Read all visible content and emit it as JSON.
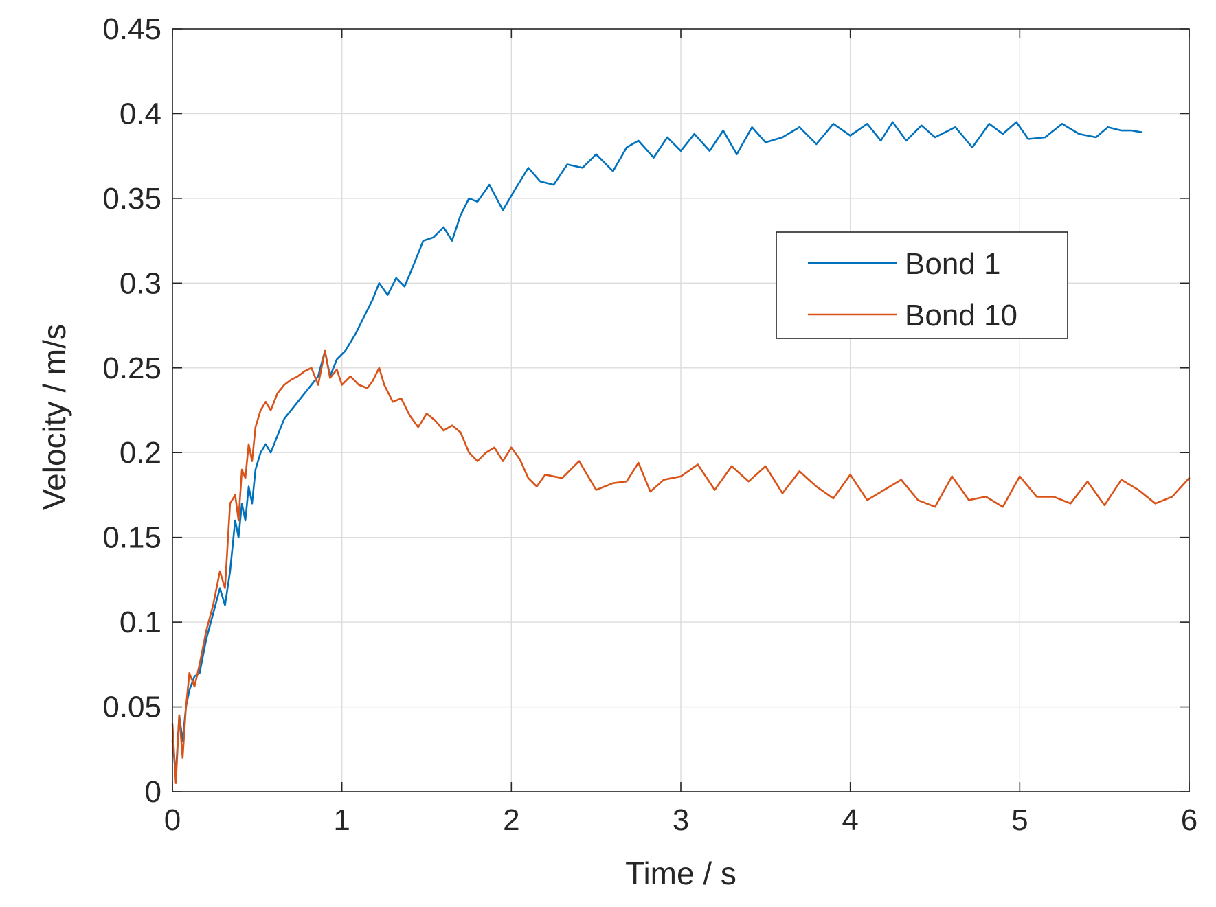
{
  "chart_data": {
    "type": "line",
    "title": "",
    "xlabel": "Time / s",
    "ylabel": "Velocity / m/s",
    "xlim": [
      0,
      6
    ],
    "ylim": [
      0,
      0.45
    ],
    "xticks": [
      0,
      1,
      2,
      3,
      4,
      5,
      6
    ],
    "xtick_labels": [
      "0",
      "1",
      "2",
      "3",
      "4",
      "5",
      "6"
    ],
    "yticks": [
      0,
      0.05,
      0.1,
      0.15,
      0.2,
      0.25,
      0.3,
      0.35,
      0.4,
      0.45
    ],
    "ytick_labels": [
      "0",
      "0.05",
      "0.1",
      "0.15",
      "0.2",
      "0.25",
      "0.3",
      "0.35",
      "0.4",
      "0.45"
    ],
    "grid": true,
    "legend_position": "upper-right",
    "series": [
      {
        "name": "Bond 1",
        "color": "#0072BD",
        "x": [
          0,
          0.02,
          0.04,
          0.06,
          0.08,
          0.1,
          0.13,
          0.16,
          0.2,
          0.24,
          0.28,
          0.31,
          0.34,
          0.37,
          0.39,
          0.41,
          0.43,
          0.45,
          0.47,
          0.49,
          0.52,
          0.55,
          0.58,
          0.62,
          0.66,
          0.7,
          0.74,
          0.78,
          0.82,
          0.86,
          0.9,
          0.93,
          0.97,
          1.02,
          1.08,
          1.13,
          1.18,
          1.22,
          1.27,
          1.32,
          1.37,
          1.42,
          1.48,
          1.54,
          1.6,
          1.65,
          1.7,
          1.75,
          1.8,
          1.87,
          1.95,
          2.02,
          2.1,
          2.17,
          2.25,
          2.33,
          2.42,
          2.5,
          2.6,
          2.68,
          2.75,
          2.84,
          2.92,
          3.0,
          3.08,
          3.17,
          3.25,
          3.33,
          3.42,
          3.5,
          3.6,
          3.7,
          3.8,
          3.9,
          4.0,
          4.1,
          4.18,
          4.25,
          4.33,
          4.42,
          4.5,
          4.62,
          4.72,
          4.82,
          4.9,
          4.98,
          5.05,
          5.15,
          5.25,
          5.35,
          5.45,
          5.52,
          5.6,
          5.66,
          5.72
        ],
        "values": [
          0.03,
          0.01,
          0.045,
          0.03,
          0.05,
          0.06,
          0.068,
          0.07,
          0.09,
          0.105,
          0.12,
          0.11,
          0.13,
          0.16,
          0.15,
          0.17,
          0.16,
          0.18,
          0.17,
          0.19,
          0.2,
          0.205,
          0.2,
          0.21,
          0.22,
          0.225,
          0.23,
          0.235,
          0.24,
          0.245,
          0.26,
          0.245,
          0.255,
          0.26,
          0.27,
          0.28,
          0.29,
          0.3,
          0.293,
          0.303,
          0.298,
          0.31,
          0.325,
          0.327,
          0.333,
          0.325,
          0.34,
          0.35,
          0.348,
          0.358,
          0.343,
          0.355,
          0.368,
          0.36,
          0.358,
          0.37,
          0.368,
          0.376,
          0.366,
          0.38,
          0.384,
          0.374,
          0.386,
          0.378,
          0.388,
          0.378,
          0.39,
          0.376,
          0.392,
          0.383,
          0.386,
          0.392,
          0.382,
          0.394,
          0.387,
          0.394,
          0.384,
          0.395,
          0.384,
          0.393,
          0.386,
          0.392,
          0.38,
          0.394,
          0.388,
          0.395,
          0.385,
          0.386,
          0.394,
          0.388,
          0.386,
          0.392,
          0.39,
          0.39,
          0.389
        ]
      },
      {
        "name": "Bond 10",
        "color": "#D95319",
        "x": [
          0,
          0.02,
          0.04,
          0.06,
          0.08,
          0.1,
          0.13,
          0.16,
          0.2,
          0.24,
          0.28,
          0.31,
          0.34,
          0.37,
          0.39,
          0.41,
          0.43,
          0.45,
          0.47,
          0.49,
          0.52,
          0.55,
          0.58,
          0.62,
          0.66,
          0.7,
          0.74,
          0.78,
          0.82,
          0.86,
          0.9,
          0.93,
          0.97,
          1.0,
          1.05,
          1.1,
          1.15,
          1.18,
          1.22,
          1.25,
          1.3,
          1.35,
          1.4,
          1.45,
          1.5,
          1.55,
          1.6,
          1.65,
          1.7,
          1.75,
          1.8,
          1.85,
          1.9,
          1.95,
          2.0,
          2.05,
          2.1,
          2.15,
          2.2,
          2.3,
          2.4,
          2.5,
          2.6,
          2.68,
          2.75,
          2.82,
          2.9,
          3.0,
          3.1,
          3.2,
          3.3,
          3.4,
          3.5,
          3.6,
          3.7,
          3.8,
          3.9,
          4.0,
          4.1,
          4.2,
          4.3,
          4.4,
          4.5,
          4.6,
          4.7,
          4.8,
          4.9,
          5.0,
          5.1,
          5.2,
          5.3,
          5.4,
          5.5,
          5.6,
          5.7,
          5.8,
          5.9,
          6.0
        ],
        "values": [
          0.04,
          0.005,
          0.045,
          0.02,
          0.05,
          0.07,
          0.062,
          0.075,
          0.095,
          0.11,
          0.13,
          0.12,
          0.17,
          0.175,
          0.16,
          0.19,
          0.185,
          0.205,
          0.195,
          0.215,
          0.225,
          0.23,
          0.225,
          0.235,
          0.24,
          0.243,
          0.245,
          0.248,
          0.25,
          0.24,
          0.26,
          0.244,
          0.249,
          0.24,
          0.245,
          0.24,
          0.238,
          0.242,
          0.25,
          0.24,
          0.23,
          0.232,
          0.222,
          0.215,
          0.223,
          0.219,
          0.213,
          0.216,
          0.212,
          0.2,
          0.195,
          0.2,
          0.203,
          0.195,
          0.203,
          0.196,
          0.185,
          0.18,
          0.187,
          0.185,
          0.195,
          0.178,
          0.182,
          0.183,
          0.194,
          0.177,
          0.184,
          0.186,
          0.193,
          0.178,
          0.192,
          0.183,
          0.192,
          0.176,
          0.189,
          0.18,
          0.173,
          0.187,
          0.172,
          0.178,
          0.184,
          0.172,
          0.168,
          0.186,
          0.172,
          0.174,
          0.168,
          0.186,
          0.174,
          0.174,
          0.17,
          0.183,
          0.169,
          0.184,
          0.178,
          0.17,
          0.174,
          0.185
        ]
      }
    ]
  }
}
